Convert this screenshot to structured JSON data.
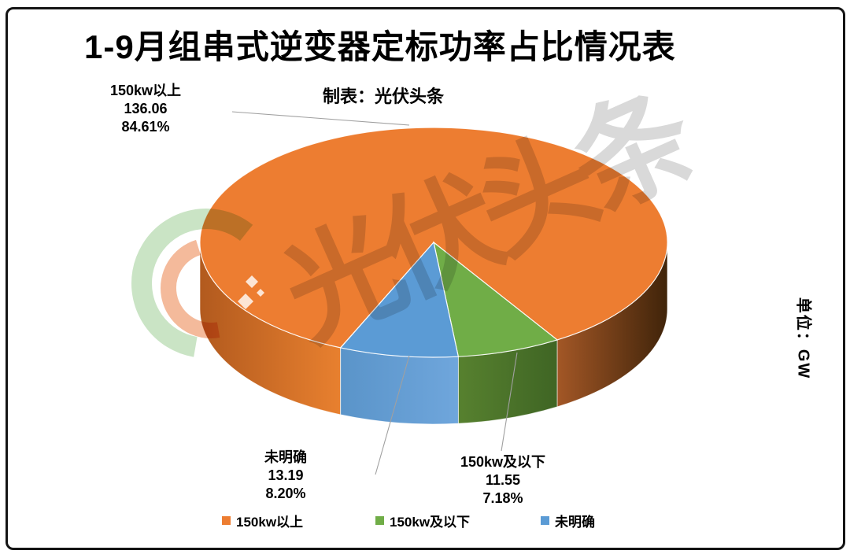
{
  "frame": {
    "border_color": "#141414"
  },
  "header": {
    "title": "1-9月组串式逆变器定标功率占比情况表",
    "subtitle": "制表：光伏头条"
  },
  "unit_label": "单位：GW",
  "watermark": {
    "text": "光伏头条"
  },
  "chart_data": {
    "type": "pie",
    "style": "3d",
    "title": "1-9月组串式逆变器定标功率占比情况表",
    "subtitle": "制表：光伏头条",
    "unit": "GW",
    "legend_position": "bottom",
    "start_angle_deg": 113.5,
    "series": [
      {
        "name": "150kw以上",
        "value": 136.06,
        "percent": "84.61%",
        "color": "#ED7D31",
        "wall": [
          [
            "#B25A1E",
            "#E8802F"
          ],
          [
            "#A35726",
            "#40240A"
          ]
        ]
      },
      {
        "name": "150kw及以下",
        "value": 11.55,
        "percent": "7.18%",
        "color": "#70AD47",
        "wall": [
          "#57812F",
          "#3F6524"
        ]
      },
      {
        "name": "未明确",
        "value": 13.19,
        "percent": "8.20%",
        "color": "#5B9BD5",
        "wall": [
          "#5A94C9",
          "#6FA6DC"
        ]
      }
    ]
  }
}
